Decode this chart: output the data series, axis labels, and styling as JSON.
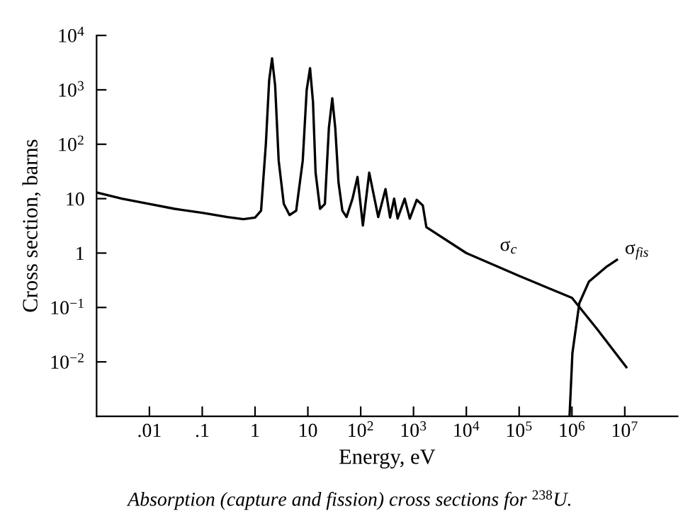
{
  "chart_data": {
    "type": "line",
    "xlabel": "Energy, eV",
    "ylabel": "Cross section, barns",
    "log": "xy",
    "grid": false,
    "legend": false,
    "marker": "none",
    "line_style": "solid",
    "xlim": [
      0.001,
      100000000
    ],
    "ylim": [
      0.001,
      10000
    ],
    "xticks": [
      {
        "value": 0.01,
        "label": ".01"
      },
      {
        "value": 0.1,
        "label": ".1"
      },
      1,
      10,
      {
        "value": 100,
        "label": "10$^{2}$"
      },
      {
        "value": 1000,
        "label": "10$^{3}$"
      },
      {
        "value": 10000,
        "label": "10$^{4}$"
      },
      {
        "value": 100000,
        "label": "10$^{5}$"
      },
      {
        "value": 1000000,
        "label": "10$^{6}$"
      },
      {
        "value": 10000000,
        "label": "10$^{7}$"
      }
    ],
    "yticks": [
      {
        "value": 0.01,
        "label": "10$^{−2}$"
      },
      {
        "value": 0.1,
        "label": "10$^{−1}$"
      },
      1,
      10,
      {
        "value": 100,
        "label": "10$^{2}$"
      },
      {
        "value": 1000,
        "label": "10$^{3}$"
      },
      {
        "value": 10000,
        "label": "10$^{4}$"
      }
    ],
    "series": [
      {
        "name": "σ$_{c}$",
        "color": "#000000",
        "x": [
          0.001,
          0.003,
          0.01,
          0.03,
          0.1,
          0.3,
          0.6,
          1.0,
          1.3,
          1.6,
          1.85,
          2.1,
          2.4,
          2.8,
          3.5,
          4.5,
          6,
          8,
          9.5,
          11,
          12.5,
          14,
          17,
          21,
          25,
          29,
          33,
          38,
          45,
          54,
          70,
          87,
          110,
          145,
          215,
          295,
          360,
          430,
          500,
          680,
          850,
          1150,
          1500,
          1750,
          10000,
          100000,
          1000000,
          3000000,
          10700000
        ],
        "values": [
          13,
          10,
          8,
          6.5,
          5.5,
          4.6,
          4.2,
          4.5,
          6,
          100,
          1500,
          3800,
          1200,
          50,
          8,
          5,
          6,
          50,
          1000,
          2500,
          600,
          30,
          6.5,
          8,
          200,
          700,
          200,
          20,
          6,
          4.6,
          10,
          25,
          3.2,
          30,
          4.6,
          15,
          4.5,
          10,
          4.3,
          10,
          4.3,
          9.5,
          7.5,
          3.0,
          1.0,
          0.38,
          0.15,
          0.04,
          0.008
        ]
      },
      {
        "name": "σ$_{fis}$",
        "color": "#000000",
        "x": [
          900000,
          1020000,
          1380000,
          2100000,
          4400000,
          7100000
        ],
        "values": [
          0.001,
          0.0145,
          0.12,
          0.3,
          0.55,
          0.75
        ]
      }
    ],
    "annotations": [
      "Absorption (capture and fission) cross sections for $^{238}$U."
    ]
  }
}
